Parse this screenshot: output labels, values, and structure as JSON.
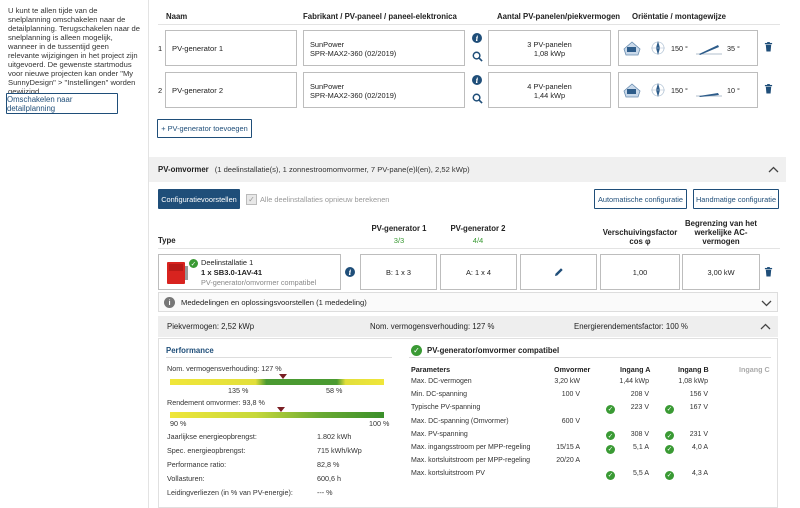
{
  "sidebar": {
    "info_text": "U kunt te allen tijde van de snelplanning omschakelen naar de detailplanning. Terugschakelen naar de snelplanning is alleen mogelijk, wanneer in de tussentijd geen relevante wijzigingen in het project zijn uitgevoerd. De gewenste startmodus voor nieuwe projecten kan onder \"My SunnyDesign\" > \"Instellingen\" worden gewijzigd.",
    "switch_button": "Omschakelen naar detailplanning"
  },
  "pv_generators": {
    "headers": {
      "name": "Naam",
      "manufacturer": "Fabrikant / PV-paneel / paneel-elektronica",
      "count_power": "Aantal PV-panelen/piekvermogen",
      "orientation": "Oriëntatie / montagewijze"
    },
    "rows": [
      {
        "num": "1",
        "name": "PV-generator 1",
        "manufacturer": "SunPower",
        "model": "SPR-MAX2-360 (02/2019)",
        "panels": "3 PV-panelen",
        "power": "1,08 kWp",
        "azimuth": "150 °",
        "tilt": "35 °"
      },
      {
        "num": "2",
        "name": "PV-generator 2",
        "manufacturer": "SunPower",
        "model": "SPR-MAX2-360 (02/2019)",
        "panels": "4 PV-panelen",
        "power": "1,44 kWp",
        "azimuth": "150 °",
        "tilt": "10 °"
      }
    ],
    "add_button": "+ PV-generator toevoegen"
  },
  "inverter": {
    "title": "PV-omvormer",
    "subtitle": "(1 deelinstallatie(s), 1 zonnestroomomvormer, 7 PV-pane(e)l(en), 2,52 kWp)",
    "config_button": "Configuratievoorstellen",
    "recalc_label": "Alle deelinstallaties opnieuw berekenen",
    "auto_config": "Automatische configuratie",
    "manual_config": "Handmatige configuratie",
    "col_type": "Type",
    "col_gen1": "PV-generator 1",
    "col_gen1_val": "3/3",
    "col_gen2": "PV-generator 2",
    "col_gen2_val": "4/4",
    "col_phase": "Verschuivingsfactor cos φ",
    "col_limit": "Begrenzing van het werkelijke AC-vermogen",
    "device_name": "Deelinstallatie 1",
    "device_model": "1 x SB3.0-1AV-41",
    "device_status": "PV-generator/omvormer compatibel",
    "input_a": "B: 1 x 3",
    "input_b": "A: 1 x 4",
    "phase_val": "1,00",
    "limit_val": "3,00 kW"
  },
  "messages": {
    "title": "Mededelingen en oplossingsvoorstellen (1 mededeling)"
  },
  "summary": {
    "peak": "Piekvermogen: 2,52 kWp",
    "ratio": "Nom. vermogensverhouding: 127 %",
    "efficiency": "Energierendementsfactor: 100 %"
  },
  "performance": {
    "title": "Performance",
    "ratio_label": "Nom. vermogensverhouding: 127 %",
    "ratio_left": "135 %",
    "ratio_right": "58 %",
    "ratio_marker": 0.53,
    "eff_label": "Rendement omvormer: 93,8 %",
    "eff_left": "90 %",
    "eff_right": "100 %",
    "eff_marker": 0.52,
    "rows": [
      {
        "label": "Jaarlijkse energieopbrengst:",
        "value": "1.802 kWh"
      },
      {
        "label": "Spec. energieopbrengst:",
        "value": "715 kWh/kWp"
      },
      {
        "label": "Performance ratio:",
        "value": "82,8 %"
      },
      {
        "label": "Vollasturen:",
        "value": "600,6  h"
      },
      {
        "label": "Leidingverliezen (in % van PV-energie):",
        "value": "--- %"
      }
    ]
  },
  "compat": {
    "title": "PV-generator/omvormer compatibel",
    "headers": [
      "Parameters",
      "Omvormer",
      "Ingang A",
      "Ingang B",
      "Ingang C"
    ],
    "rows": [
      {
        "p": "Max. DC-vermogen",
        "o": "3,20 kW",
        "a": "1,44 kWp",
        "ac": false,
        "b": "1,08 kWp",
        "bc": false
      },
      {
        "p": "Min. DC-spanning",
        "o": "100 V",
        "a": "208 V",
        "ac": false,
        "b": "156 V",
        "bc": false
      },
      {
        "p": "Typische PV-spanning",
        "o": "",
        "a": "223 V",
        "ac": true,
        "b": "167 V",
        "bc": true
      },
      {
        "p": "Max. DC-spanning (Omvormer)",
        "o": "600 V",
        "a": "",
        "ac": false,
        "b": "",
        "bc": false
      },
      {
        "p": "Max. PV-spanning",
        "o": "",
        "a": "308 V",
        "ac": true,
        "b": "231 V",
        "bc": true
      },
      {
        "p": "Max. ingangsstroom per MPP-regeling",
        "o": "15/15 A",
        "a": "5,1 A",
        "ac": true,
        "b": "4,0 A",
        "bc": true
      },
      {
        "p": "Max. kortsluitstroom per MPP-regeling",
        "o": "20/20 A",
        "a": "",
        "ac": false,
        "b": "",
        "bc": false
      },
      {
        "p": "Max. kortsluitstroom PV",
        "o": "",
        "a": "5,5 A",
        "ac": true,
        "b": "4,3 A",
        "bc": true
      }
    ]
  }
}
